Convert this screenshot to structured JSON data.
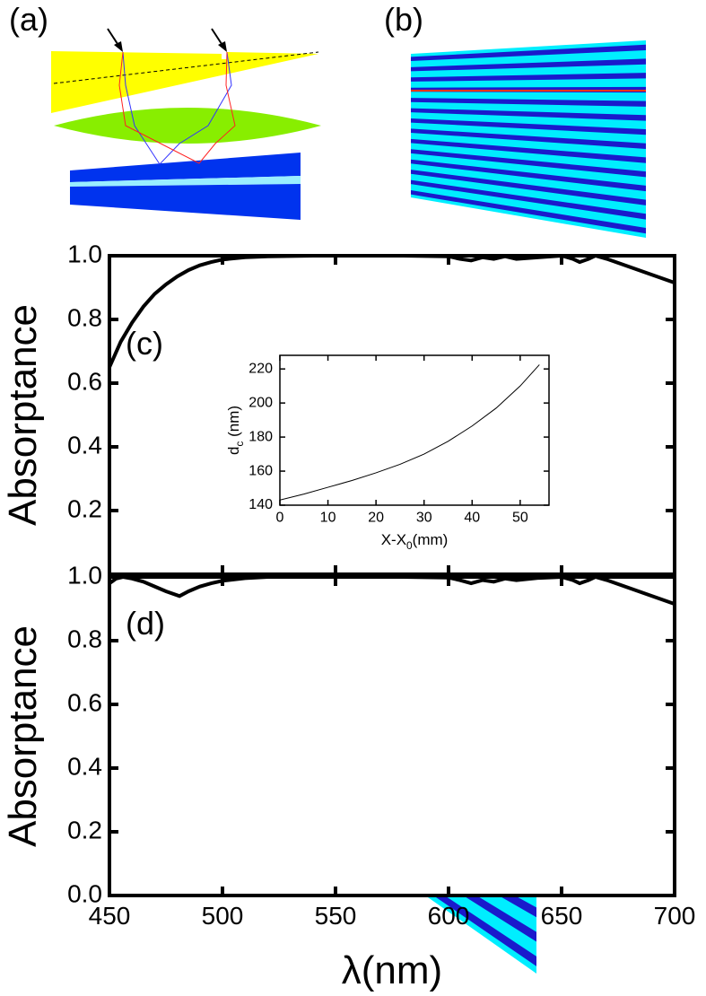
{
  "diagram_labels": [
    "(a)",
    "(b)"
  ],
  "chart_data": [
    {
      "type": "line",
      "annotation": "(c)",
      "ylabel": "Absorptance",
      "xlim": [
        450,
        700
      ],
      "ylim": [
        0,
        1
      ],
      "yticks": [
        0.2,
        0.4,
        0.6,
        0.8,
        {
          "value": 1,
          "label": "1.0"
        }
      ],
      "x": [
        450,
        455,
        460,
        465,
        470,
        475,
        480,
        485,
        490,
        495,
        500,
        510,
        520,
        540,
        560,
        580,
        600,
        605,
        610,
        615,
        620,
        625,
        630,
        640,
        650,
        655,
        658,
        662,
        665,
        670,
        680,
        690,
        700
      ],
      "series": [
        {
          "color": "#000000",
          "values": [
            0.65,
            0.73,
            0.79,
            0.84,
            0.88,
            0.91,
            0.935,
            0.955,
            0.97,
            0.98,
            0.988,
            0.995,
            0.998,
            1.0,
            1.0,
            1.0,
            0.998,
            0.99,
            0.985,
            0.995,
            0.99,
            0.998,
            0.99,
            0.995,
            1.0,
            0.99,
            0.98,
            0.99,
            1.0,
            0.99,
            0.965,
            0.94,
            0.915
          ]
        }
      ]
    },
    {
      "type": "line",
      "annotation": "(d)",
      "ylabel": "Absorptance",
      "xlabel": "λ(nm)",
      "xlim": [
        450,
        700
      ],
      "ylim": [
        0,
        1
      ],
      "xticks": [
        450,
        500,
        550,
        600,
        650,
        700
      ],
      "yticks": [
        {
          "value": 0,
          "label": "0.0"
        },
        0.2,
        0.4,
        0.6,
        0.8,
        {
          "value": 1,
          "label": "1.0"
        }
      ],
      "x": [
        450,
        453,
        456,
        460,
        465,
        470,
        475,
        481,
        485,
        490,
        495,
        500,
        510,
        520,
        540,
        560,
        580,
        600,
        605,
        610,
        615,
        620,
        625,
        630,
        640,
        650,
        655,
        658,
        662,
        665,
        670,
        680,
        690,
        700
      ],
      "series": [
        {
          "color": "#000000",
          "values": [
            0.98,
            0.995,
            1.0,
            0.995,
            0.985,
            0.97,
            0.955,
            0.94,
            0.955,
            0.97,
            0.98,
            0.988,
            0.996,
            1.0,
            1.0,
            1.0,
            1.0,
            0.998,
            0.99,
            0.98,
            0.99,
            0.985,
            0.995,
            0.99,
            0.997,
            1.0,
            0.99,
            0.98,
            0.99,
            1.0,
            0.99,
            0.965,
            0.94,
            0.915
          ]
        }
      ]
    },
    {
      "type": "line",
      "xlabel": {
        "main": "X-X",
        "sub": "0",
        "rest": "(mm)"
      },
      "ylabel": {
        "main": "d",
        "sub": "c",
        "rest": " (nm)"
      },
      "xlim": [
        0,
        56
      ],
      "ylim": [
        140,
        228
      ],
      "xticks": [
        0,
        10,
        20,
        30,
        40,
        50
      ],
      "yticks": [
        140,
        160,
        180,
        200,
        220
      ],
      "x": [
        0,
        5,
        10,
        15,
        20,
        25,
        30,
        35,
        40,
        45,
        50,
        54
      ],
      "series": [
        {
          "color": "#000000",
          "values": [
            143,
            146.5,
            150.5,
            154.5,
            159,
            164,
            170,
            177.5,
            186.5,
            197,
            210,
            222.5
          ]
        }
      ]
    }
  ]
}
